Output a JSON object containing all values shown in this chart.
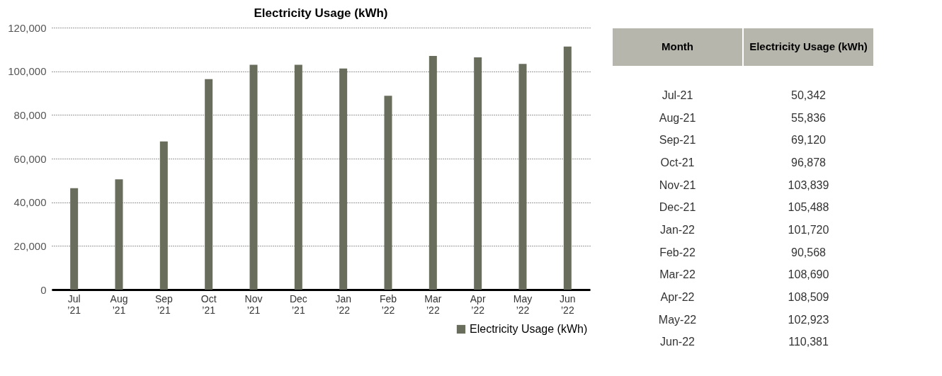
{
  "chart_data": [
    {
      "type": "bar",
      "title": "Electricity Usage (kWh)",
      "categories": [
        "Jul ’21",
        "Aug ’21",
        "Sep ’21",
        "Oct ’21",
        "Nov ’21",
        "Dec ’21",
        "Jan ’22",
        "Feb ’22",
        "Mar ’22",
        "Apr ’22",
        "May ’22",
        "Jun ’22"
      ],
      "series": [
        {
          "name": "Electricity Usage (kWh)",
          "color": "#686e5b",
          "values": [
            46500,
            50500,
            67900,
            96400,
            103000,
            103000,
            101300,
            88800,
            107000,
            106400,
            103400,
            111300
          ]
        }
      ],
      "ylim": [
        0,
        120000
      ],
      "yticks": [
        0,
        {
          "value": 20000,
          "label": "20,000"
        },
        {
          "value": 40000,
          "label": "40,000"
        },
        {
          "value": 60000,
          "label": "60,000"
        },
        {
          "value": 80000,
          "label": "80,000"
        },
        {
          "value": 100000,
          "label": "100,000"
        },
        {
          "value": 120000,
          "label": "120,000"
        }
      ],
      "grid": "y",
      "legend": "bottom right"
    },
    {
      "type": "other",
      "annotations": [
        "Month",
        "Electricity Usage (kWh)",
        "Jul-21",
        "50,342",
        "Aug-21",
        "55,836",
        "Sep-21",
        "69,120",
        "Oct-21",
        "96,878",
        "Nov-21",
        "103,839",
        "Dec-21",
        "105,488",
        "Jan-22",
        "101,720",
        "Feb-22",
        "90,568",
        "Mar-22",
        "108,690",
        "Apr-22",
        "108,509",
        "May-22",
        "102,923",
        "Jun-22",
        "110,381"
      ]
    }
  ]
}
